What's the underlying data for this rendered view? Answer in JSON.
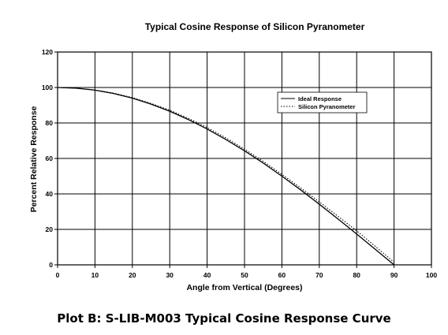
{
  "caption": "Plot B: S-LIB-M003 Typical Cosine Response Curve",
  "chart_data": {
    "type": "line",
    "title": "Typical Cosine Response of Silicon Pyranometer",
    "xlabel": "Angle from Vertical (Degrees)",
    "ylabel": "Percent Relative Response",
    "xlim": [
      0,
      100
    ],
    "ylim": [
      0,
      120
    ],
    "xticks": [
      0,
      10,
      20,
      30,
      40,
      50,
      60,
      70,
      80,
      90,
      100
    ],
    "yticks": [
      0,
      20,
      40,
      60,
      80,
      100,
      120
    ],
    "xtick_labels": [
      "0",
      "10",
      "20",
      "30",
      "40",
      "50",
      "60",
      "70",
      "80",
      "90",
      "100"
    ],
    "ytick_labels": [
      "0",
      "20",
      "40",
      "60",
      "80",
      "100",
      "120"
    ],
    "grid": true,
    "legend_position": "top-right",
    "series": [
      {
        "name": "Ideal Response",
        "style": "solid",
        "color": "#000000",
        "x": [
          0,
          5,
          10,
          15,
          20,
          25,
          30,
          35,
          40,
          45,
          50,
          55,
          60,
          65,
          70,
          75,
          80,
          85,
          90
        ],
        "y": [
          100,
          99.6,
          98.5,
          96.6,
          94,
          90.6,
          86.6,
          81.9,
          76.6,
          70.7,
          64.3,
          57.4,
          50,
          42.3,
          34.2,
          25.9,
          17.4,
          8.7,
          0
        ]
      },
      {
        "name": "Silicon Pyranometer",
        "style": "dotted",
        "color": "#000000",
        "x": [
          0,
          5,
          10,
          15,
          20,
          25,
          30,
          35,
          40,
          45,
          50,
          55,
          60,
          65,
          70,
          75,
          80,
          85,
          90
        ],
        "y": [
          100,
          99.6,
          98.6,
          96.8,
          94.3,
          91,
          87.2,
          82.6,
          77.4,
          71.6,
          65.2,
          58.4,
          51,
          43.4,
          35.5,
          27.4,
          19.2,
          10.4,
          1.5
        ]
      }
    ]
  }
}
